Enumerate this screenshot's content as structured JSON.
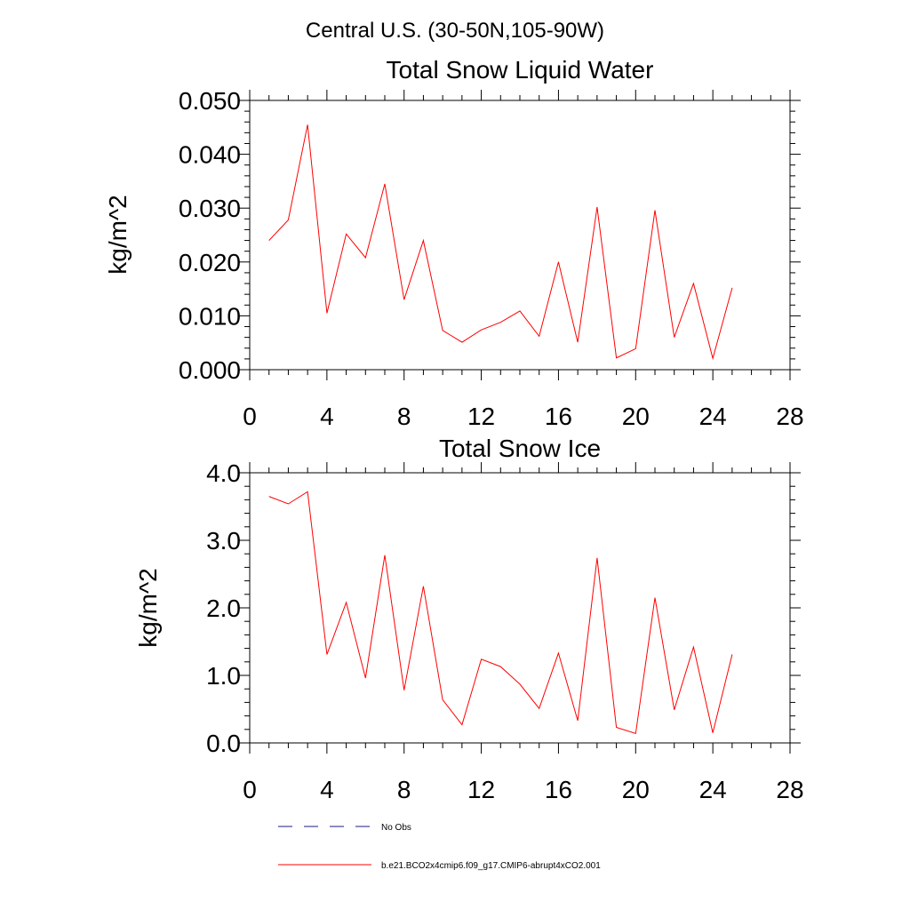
{
  "header": {
    "region": "Central U.S. (30-50N,105-90W)"
  },
  "chart_data": [
    {
      "type": "line",
      "title": "Total Snow Liquid Water",
      "xlabel": "",
      "ylabel": "kg/m^2",
      "xlim": [
        0,
        28
      ],
      "ylim": [
        0,
        0.05
      ],
      "x_ticks": [
        "0",
        "4",
        "8",
        "12",
        "16",
        "20",
        "24",
        "28"
      ],
      "y_ticks": [
        "0.000",
        "0.010",
        "0.020",
        "0.030",
        "0.040",
        "0.050"
      ],
      "grid": false,
      "series": [
        {
          "name": "b.e21.BCO2x4cmip6.f09_g17.CMIP6-abrupt4xCO2.001",
          "color": "#ff0000",
          "x": [
            1,
            2,
            3,
            4,
            5,
            6,
            7,
            8,
            9,
            10,
            11,
            12,
            13,
            14,
            15,
            16,
            17,
            18,
            19,
            20,
            21,
            22,
            23,
            24,
            25
          ],
          "values": [
            0.024,
            0.0278,
            0.0455,
            0.0105,
            0.0252,
            0.0208,
            0.0345,
            0.013,
            0.024,
            0.0073,
            0.0051,
            0.0074,
            0.0088,
            0.0109,
            0.0062,
            0.02,
            0.0051,
            0.0302,
            0.0022,
            0.0039,
            0.0296,
            0.006,
            0.016,
            0.0021,
            0.0152
          ]
        }
      ]
    },
    {
      "type": "line",
      "title": "Total Snow Ice",
      "xlabel": "",
      "ylabel": "kg/m^2",
      "xlim": [
        0,
        28
      ],
      "ylim": [
        0,
        4.0
      ],
      "x_ticks": [
        "0",
        "4",
        "8",
        "12",
        "16",
        "20",
        "24",
        "28"
      ],
      "y_ticks": [
        "0.0",
        "1.0",
        "2.0",
        "3.0",
        "4.0"
      ],
      "grid": false,
      "series": [
        {
          "name": "b.e21.BCO2x4cmip6.f09_g17.CMIP6-abrupt4xCO2.001",
          "color": "#ff0000",
          "x": [
            1,
            2,
            3,
            4,
            5,
            6,
            7,
            8,
            9,
            10,
            11,
            12,
            13,
            14,
            15,
            16,
            17,
            18,
            19,
            20,
            21,
            22,
            23,
            24,
            25
          ],
          "values": [
            3.65,
            3.54,
            3.72,
            1.31,
            2.08,
            0.96,
            2.78,
            0.78,
            2.32,
            0.64,
            0.27,
            1.24,
            1.13,
            0.87,
            0.51,
            1.33,
            0.33,
            2.74,
            0.23,
            0.14,
            2.15,
            0.49,
            1.42,
            0.15,
            1.31
          ]
        }
      ]
    }
  ],
  "legend": {
    "placement": "bottom",
    "items": [
      {
        "label": "No Obs",
        "style": "dashed",
        "color": "#1a1a8a"
      },
      {
        "label": "b.e21.BCO2x4cmip6.f09_g17.CMIP6-abrupt4xCO2.001",
        "style": "solid",
        "color": "#ff0000"
      }
    ]
  }
}
